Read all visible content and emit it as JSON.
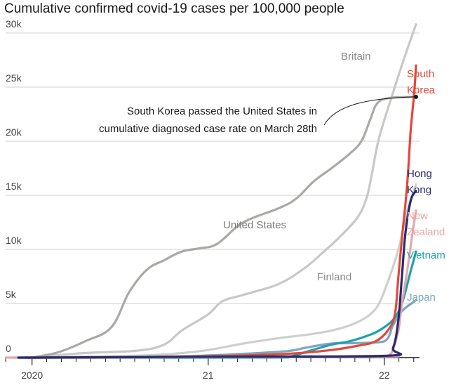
{
  "chart_data": {
    "type": "line",
    "title": "Cumulative confirmed covid-19 cases per 100,000 people",
    "xlabel": "",
    "ylabel": "",
    "ylim": [
      0,
      30000
    ],
    "xlim": [
      2019.85,
      2022.2
    ],
    "yticks": [
      {
        "value": 0,
        "label": "0"
      },
      {
        "value": 5000,
        "label": "5k"
      },
      {
        "value": 10000,
        "label": "10k"
      },
      {
        "value": 15000,
        "label": "15k"
      },
      {
        "value": 20000,
        "label": "20k"
      },
      {
        "value": 25000,
        "label": "25k"
      },
      {
        "value": 30000,
        "label": "30k"
      }
    ],
    "xticks": [
      {
        "value": 2020,
        "label": "2020"
      },
      {
        "value": 2021,
        "label": "21"
      },
      {
        "value": 2022,
        "label": "22"
      }
    ],
    "minor_xticks": [
      2019.85,
      2020.083,
      2020.167,
      2020.25,
      2020.333,
      2020.417,
      2020.5,
      2020.583,
      2020.667,
      2020.75,
      2020.833,
      2020.917,
      2021.083,
      2021.167,
      2021.25,
      2021.333,
      2021.417,
      2021.5,
      2021.583,
      2021.667,
      2021.75,
      2021.833,
      2021.917,
      2022.083,
      2022.167
    ],
    "series": [
      {
        "name": "Britain",
        "color": "#c8c8c6",
        "x": [
          2020.0,
          2020.2,
          2020.33,
          2020.6,
          2020.75,
          2020.85,
          2021.0,
          2021.08,
          2021.2,
          2021.4,
          2021.55,
          2021.65,
          2021.75,
          2021.85,
          2021.9,
          2021.93,
          2021.97,
          2022.05,
          2022.12,
          2022.18
        ],
        "values": [
          0,
          300,
          450,
          650,
          1200,
          2500,
          4000,
          5200,
          5800,
          6800,
          8300,
          9700,
          11200,
          13000,
          14800,
          17000,
          20300,
          24500,
          28000,
          30800
        ]
      },
      {
        "name": "United States",
        "color": "#a9a9a6",
        "x": [
          2020.0,
          2020.15,
          2020.3,
          2020.45,
          2020.55,
          2020.65,
          2020.75,
          2020.85,
          2020.95,
          2021.05,
          2021.2,
          2021.4,
          2021.5,
          2021.6,
          2021.7,
          2021.8,
          2021.87,
          2021.92,
          2021.96,
          2022.03,
          2022.18
        ],
        "values": [
          0,
          500,
          1500,
          2800,
          6000,
          8100,
          9000,
          9800,
          10100,
          10500,
          12500,
          13800,
          14700,
          16300,
          17500,
          18800,
          20000,
          22000,
          23500,
          24000,
          24100
        ]
      },
      {
        "name": "Finland",
        "color": "#cfcfcd",
        "x": [
          2020.0,
          2020.3,
          2020.6,
          2020.8,
          2021.0,
          2021.2,
          2021.4,
          2021.6,
          2021.75,
          2021.85,
          2021.92,
          2021.97,
          2022.02,
          2022.08,
          2022.13,
          2022.18
        ],
        "values": [
          0,
          100,
          180,
          350,
          700,
          1300,
          1800,
          2200,
          2700,
          3300,
          4000,
          5000,
          7000,
          10000,
          13500,
          16000
        ]
      },
      {
        "name": "Japan",
        "color": "#7ea6bf",
        "x": [
          2020.0,
          2020.5,
          2020.8,
          2021.0,
          2021.2,
          2021.45,
          2021.55,
          2021.7,
          2021.85,
          2022.0,
          2022.05,
          2022.1,
          2022.18
        ],
        "values": [
          0,
          20,
          100,
          200,
          350,
          600,
          900,
          1300,
          1350,
          1500,
          3000,
          4300,
          5300
        ]
      },
      {
        "name": "Vietnam",
        "color": "#1ea0b4",
        "x": [
          2020.0,
          2021.3,
          2021.45,
          2021.55,
          2021.7,
          2021.8,
          2021.9,
          2021.97,
          2022.05,
          2022.1,
          2022.15,
          2022.18
        ],
        "values": [
          0,
          5,
          50,
          500,
          1200,
          1500,
          2000,
          2500,
          3500,
          5000,
          8000,
          9800
        ]
      },
      {
        "name": "New Zealand",
        "color": "#e7a8a8",
        "x": [
          2020.0,
          2021.9,
          2022.0,
          2022.04,
          2022.08,
          2022.1,
          2022.13,
          2022.16,
          2022.18
        ],
        "values": [
          0,
          100,
          150,
          400,
          2500,
          5000,
          8000,
          11500,
          13600
        ]
      },
      {
        "name": "South Korea",
        "color": "#e0493a",
        "x": [
          2020.0,
          2020.5,
          2021.0,
          2021.3,
          2021.5,
          2021.7,
          2021.85,
          2021.95,
          2022.02,
          2022.06,
          2022.08,
          2022.1,
          2022.13,
          2022.15,
          2022.17,
          2022.18
        ],
        "values": [
          0,
          30,
          120,
          250,
          400,
          700,
          1100,
          1500,
          2500,
          4000,
          7500,
          11000,
          16000,
          21000,
          24500,
          27000
        ]
      },
      {
        "name": "Hong Kong",
        "color": "#2b2a6e",
        "x": [
          2020.0,
          2021.0,
          2022.0,
          2022.05,
          2022.08,
          2022.1,
          2022.12,
          2022.15,
          2022.18
        ],
        "values": [
          0,
          80,
          160,
          900,
          3500,
          7500,
          11500,
          14500,
          15400
        ]
      }
    ],
    "labels": [
      {
        "series": "Britain",
        "lines": [
          "Britain"
        ]
      },
      {
        "series": "United States",
        "lines": [
          "United States"
        ]
      },
      {
        "series": "Finland",
        "lines": [
          "Finland"
        ]
      },
      {
        "series": "South Korea",
        "lines": [
          "South",
          "Korea"
        ]
      },
      {
        "series": "Hong Kong",
        "lines": [
          "Hong",
          "Kong"
        ]
      },
      {
        "series": "New Zealand",
        "lines": [
          "New",
          "Zealand"
        ]
      },
      {
        "series": "Vietnam",
        "lines": [
          "Vietnam"
        ]
      },
      {
        "series": "Japan",
        "lines": [
          "Japan"
        ]
      }
    ],
    "annotation": {
      "lines": [
        "South Korea passed the United States in",
        "cumulative diagnosed case rate on March 28th"
      ],
      "target_x": 2022.18,
      "target_y": 24100
    }
  }
}
